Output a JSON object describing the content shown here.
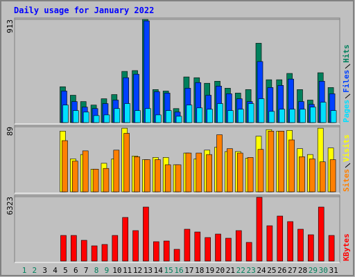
{
  "chart_data": [
    {
      "type": "bar",
      "title": "Daily usage for January 2022",
      "categories": [
        "1",
        "2",
        "3",
        "4",
        "5",
        "6",
        "7",
        "8",
        "9",
        "10",
        "11",
        "12",
        "13",
        "14",
        "15",
        "16",
        "17",
        "18",
        "19",
        "20",
        "21",
        "22",
        "23",
        "24",
        "25",
        "26",
        "27",
        "28",
        "29",
        "30",
        "31"
      ],
      "category_colors": [
        "#00805c",
        "#00805c",
        "#000000",
        "#000000",
        "#000000",
        "#000000",
        "#000000",
        "#00805c",
        "#00805c",
        "#000000",
        "#000000",
        "#000000",
        "#000000",
        "#000000",
        "#00805c",
        "#00805c",
        "#000000",
        "#000000",
        "#000000",
        "#000000",
        "#000000",
        "#00805c",
        "#00805c",
        "#000000",
        "#000000",
        "#000000",
        "#000000",
        "#000000",
        "#00805c",
        "#00805c",
        "#000000"
      ],
      "ylim": [
        0,
        913
      ],
      "yticks": [
        913
      ],
      "series": [
        {
          "name": "Hits",
          "color": "#00805c",
          "values": [
            0,
            0,
            0,
            0,
            317,
            242,
            186,
            155,
            211,
            248,
            453,
            460,
            913,
            292,
            279,
            124,
            404,
            397,
            348,
            366,
            304,
            261,
            292,
            702,
            379,
            379,
            435,
            292,
            199,
            441,
            310
          ]
        },
        {
          "name": "Files",
          "color": "#0040ff",
          "values": [
            0,
            0,
            0,
            0,
            279,
            186,
            137,
            124,
            168,
            199,
            397,
            428,
            900,
            273,
            261,
            93,
            304,
            354,
            242,
            323,
            255,
            211,
            186,
            540,
            310,
            329,
            385,
            186,
            161,
            366,
            255
          ]
        },
        {
          "name": "Pages",
          "color": "#00e0ff",
          "values": [
            0,
            0,
            0,
            0,
            155,
            106,
            93,
            62,
            68,
            124,
            168,
            106,
            124,
            68,
            106,
            56,
            155,
            130,
            118,
            168,
            106,
            118,
            168,
            211,
            99,
            118,
            118,
            118,
            137,
            180,
            106
          ]
        }
      ]
    },
    {
      "type": "bar",
      "ylim": [
        0,
        89
      ],
      "yticks": [
        89
      ],
      "series": [
        {
          "name": "Visits",
          "color": "#ffff00",
          "values": [
            0,
            0,
            0,
            0,
            83,
            45,
            51,
            31,
            39,
            45,
            87,
            49,
            44,
            47,
            47,
            37,
            53,
            45,
            57,
            61,
            55,
            55,
            46,
            76,
            85,
            83,
            84,
            59,
            51,
            87,
            60
          ]
        },
        {
          "name": "Sites",
          "color": "#ff8000",
          "values": [
            0,
            0,
            0,
            0,
            70,
            42,
            56,
            31,
            32,
            57,
            80,
            48,
            44,
            44,
            37,
            37,
            53,
            53,
            51,
            78,
            59,
            53,
            47,
            58,
            83,
            83,
            71,
            48,
            45,
            41,
            44
          ]
        }
      ]
    },
    {
      "type": "bar",
      "ylim": [
        0,
        6323
      ],
      "yticks": [
        6323
      ],
      "series": [
        {
          "name": "KBytes",
          "color": "#ff0000",
          "values": [
            0,
            0,
            0,
            0,
            2516,
            2516,
            2040,
            1496,
            1632,
            2516,
            4284,
            2992,
            5304,
            1904,
            1972,
            1156,
            3128,
            2856,
            2312,
            2652,
            2244,
            2992,
            1836,
            6256,
            3468,
            4420,
            3876,
            3128,
            2584,
            5304,
            2516
          ]
        }
      ]
    }
  ]
}
